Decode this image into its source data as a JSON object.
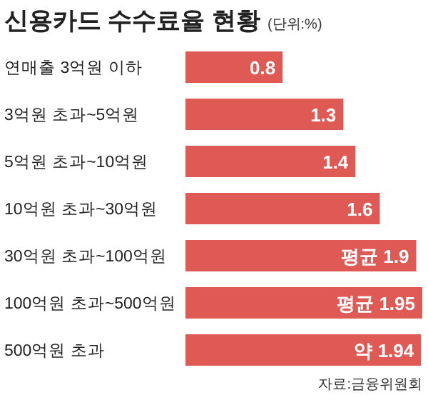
{
  "chart_data": {
    "type": "bar",
    "orientation": "horizontal",
    "title": "신용카드 수수료율 현황",
    "subtitle": "(단위:%)",
    "categories": [
      "연매출 3억원 이하",
      "3억원 초과~5억원",
      "5억원 초과~10억원",
      "10억원 초과~30억원",
      "30억원 초과~100억원",
      "100억원 초과~500억원",
      "500억원 초과"
    ],
    "values": [
      0.8,
      1.3,
      1.4,
      1.6,
      1.9,
      1.95,
      1.94
    ],
    "value_labels": [
      "0.8",
      "1.3",
      "1.4",
      "1.6",
      "평균 1.9",
      "평균 1.95",
      "약 1.94"
    ],
    "color": "#e05a55",
    "annotations": [
      "자료:금융위원회"
    ]
  }
}
